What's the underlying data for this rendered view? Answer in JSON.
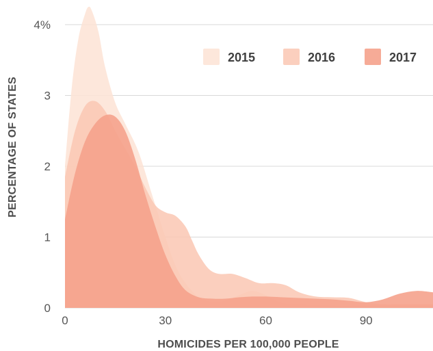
{
  "chart_data": {
    "type": "area",
    "title": "",
    "xlabel": "HOMICIDES PER 100,000 PEOPLE",
    "ylabel": "PERCENTAGE OF STATES",
    "xlim": [
      0,
      110
    ],
    "ylim": [
      0,
      4
    ],
    "x_ticks": [
      {
        "value": 0,
        "label": "0"
      },
      {
        "value": 30,
        "label": "30"
      },
      {
        "value": 60,
        "label": "60"
      },
      {
        "value": 90,
        "label": "90"
      }
    ],
    "y_ticks": [
      {
        "value": 0,
        "label": "0"
      },
      {
        "value": 1,
        "label": "1"
      },
      {
        "value": 2,
        "label": "2"
      },
      {
        "value": 3,
        "label": "3"
      },
      {
        "value": 4,
        "label": "4%"
      }
    ],
    "grid": true,
    "legend_position": "top-right",
    "series": [
      {
        "name": "2015",
        "color": "#fde3d5",
        "opacity": 0.85,
        "points": [
          [
            0,
            2.0
          ],
          [
            2,
            3.1
          ],
          [
            4,
            3.8
          ],
          [
            6,
            4.15
          ],
          [
            7,
            4.25
          ],
          [
            8,
            4.2
          ],
          [
            10,
            3.9
          ],
          [
            12,
            3.4
          ],
          [
            15,
            2.9
          ],
          [
            18,
            2.6
          ],
          [
            22,
            2.2
          ],
          [
            26,
            1.6
          ],
          [
            30,
            1.0
          ],
          [
            33,
            0.6
          ],
          [
            36,
            0.35
          ],
          [
            40,
            0.15
          ],
          [
            44,
            0.08
          ],
          [
            48,
            0.1
          ],
          [
            52,
            0.18
          ],
          [
            56,
            0.24
          ],
          [
            60,
            0.18
          ],
          [
            64,
            0.08
          ],
          [
            68,
            0.05
          ],
          [
            72,
            0.04
          ],
          [
            80,
            0.03
          ],
          [
            90,
            0.03
          ],
          [
            100,
            0.03
          ],
          [
            110,
            0.03
          ]
        ]
      },
      {
        "name": "2016",
        "color": "#fac7b3",
        "opacity": 0.85,
        "points": [
          [
            0,
            1.85
          ],
          [
            3,
            2.5
          ],
          [
            6,
            2.85
          ],
          [
            9,
            2.92
          ],
          [
            12,
            2.78
          ],
          [
            15,
            2.5
          ],
          [
            18,
            2.25
          ],
          [
            21,
            2.0
          ],
          [
            24,
            1.7
          ],
          [
            27,
            1.45
          ],
          [
            30,
            1.35
          ],
          [
            33,
            1.3
          ],
          [
            36,
            1.15
          ],
          [
            38,
            0.95
          ],
          [
            40,
            0.75
          ],
          [
            43,
            0.55
          ],
          [
            46,
            0.48
          ],
          [
            50,
            0.48
          ],
          [
            54,
            0.42
          ],
          [
            58,
            0.35
          ],
          [
            62,
            0.35
          ],
          [
            66,
            0.32
          ],
          [
            70,
            0.22
          ],
          [
            75,
            0.16
          ],
          [
            80,
            0.15
          ],
          [
            85,
            0.14
          ],
          [
            90,
            0.08
          ],
          [
            95,
            0.05
          ],
          [
            100,
            0.05
          ],
          [
            110,
            0.05
          ]
        ]
      },
      {
        "name": "2017",
        "color": "#f5a28c",
        "opacity": 0.9,
        "points": [
          [
            0,
            1.25
          ],
          [
            3,
            1.9
          ],
          [
            6,
            2.35
          ],
          [
            9,
            2.6
          ],
          [
            12,
            2.72
          ],
          [
            15,
            2.7
          ],
          [
            18,
            2.5
          ],
          [
            21,
            2.1
          ],
          [
            24,
            1.6
          ],
          [
            27,
            1.15
          ],
          [
            30,
            0.75
          ],
          [
            33,
            0.45
          ],
          [
            36,
            0.25
          ],
          [
            40,
            0.15
          ],
          [
            44,
            0.13
          ],
          [
            48,
            0.13
          ],
          [
            52,
            0.15
          ],
          [
            56,
            0.16
          ],
          [
            60,
            0.16
          ],
          [
            65,
            0.15
          ],
          [
            70,
            0.14
          ],
          [
            75,
            0.13
          ],
          [
            80,
            0.12
          ],
          [
            85,
            0.1
          ],
          [
            90,
            0.08
          ],
          [
            95,
            0.12
          ],
          [
            100,
            0.2
          ],
          [
            105,
            0.24
          ],
          [
            110,
            0.22
          ]
        ]
      }
    ]
  }
}
